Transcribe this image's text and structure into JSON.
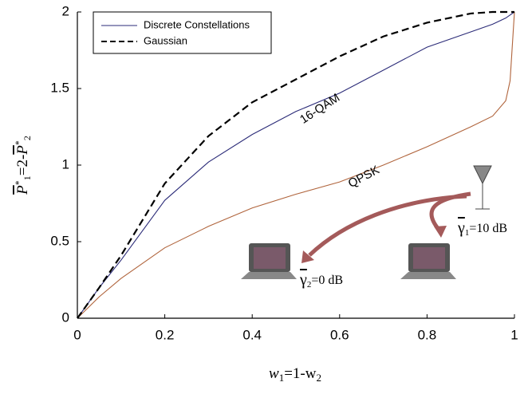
{
  "chart_data": {
    "type": "line",
    "x": [
      0,
      0.05,
      0.1,
      0.2,
      0.3,
      0.4,
      0.5,
      0.6,
      0.7,
      0.8,
      0.9,
      0.95,
      0.98,
      0.99,
      1
    ],
    "series": [
      {
        "name": "Gaussian",
        "color": "#000000",
        "dash": true,
        "values": [
          0,
          0.2,
          0.41,
          0.88,
          1.19,
          1.41,
          1.56,
          1.71,
          1.84,
          1.93,
          1.99,
          2,
          2,
          2,
          2
        ]
      },
      {
        "name": "16-QAM",
        "color": "#2b2b78",
        "dash": false,
        "values": [
          0,
          0.2,
          0.38,
          0.77,
          1.02,
          1.2,
          1.35,
          1.47,
          1.62,
          1.77,
          1.87,
          1.92,
          1.96,
          1.98,
          2
        ]
      },
      {
        "name": "QPSK",
        "color": "#b0643c",
        "dash": false,
        "values": [
          0,
          0.14,
          0.26,
          0.46,
          0.6,
          0.72,
          0.81,
          0.89,
          1.0,
          1.12,
          1.25,
          1.32,
          1.42,
          1.55,
          2
        ]
      }
    ],
    "legend_discrete": "Discrete Constellations",
    "xlim": [
      0,
      1
    ],
    "xticks": [
      0,
      0.2,
      0.4,
      0.6,
      0.8,
      1
    ],
    "ylim": [
      0,
      2
    ],
    "yticks": [
      0,
      0.5,
      1,
      1.5,
      2
    ],
    "xlabel": {
      "a": "w",
      "b": "1",
      "c": "=1-w",
      "d": "2"
    },
    "ylabel": {
      "a": "P",
      "b": "*",
      "c": "1",
      "d": "=2-",
      "e": "P",
      "f": "*",
      "g": "2"
    },
    "gamma1": {
      "a": "γ",
      "b": "1",
      "c": "=10 dB"
    },
    "gamma2": {
      "a": "γ",
      "b": "2",
      "c": "=0 dB"
    }
  }
}
